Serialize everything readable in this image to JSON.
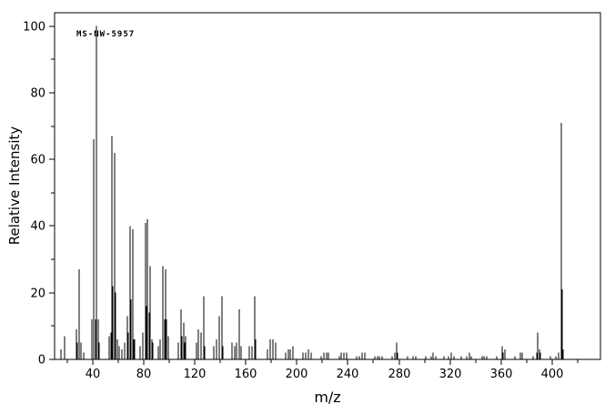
{
  "figure": {
    "background": "#ffffff",
    "line_color": "#000000"
  },
  "chart_data": {
    "type": "bar",
    "subtype": "mass-spectrum-sticks",
    "title": "",
    "annotation": "MS-NW-5957",
    "xlabel": "m/z",
    "ylabel": "Relative Intensity",
    "xlim": [
      10,
      438
    ],
    "ylim": [
      0,
      104
    ],
    "grid": false,
    "legend": false,
    "x_major_ticks": [
      40,
      80,
      120,
      160,
      200,
      240,
      280,
      320,
      360,
      400
    ],
    "x_minor_ticks": [
      20,
      60,
      100,
      140,
      180,
      220,
      260,
      300,
      340,
      380,
      420
    ],
    "y_major_ticks": [
      0,
      20,
      40,
      60,
      80,
      100
    ],
    "y_minor_ticks": [
      10,
      30,
      50,
      70,
      90
    ],
    "peaks": [
      [
        15,
        3
      ],
      [
        18,
        7
      ],
      [
        27,
        9
      ],
      [
        28,
        5
      ],
      [
        29,
        27
      ],
      [
        31,
        5
      ],
      [
        33,
        2
      ],
      [
        39,
        12
      ],
      [
        41,
        66
      ],
      [
        42,
        12
      ],
      [
        43,
        100
      ],
      [
        44,
        12
      ],
      [
        45,
        5
      ],
      [
        53,
        7
      ],
      [
        54,
        8
      ],
      [
        55,
        67
      ],
      [
        56,
        22
      ],
      [
        57,
        62
      ],
      [
        58,
        20
      ],
      [
        59,
        6
      ],
      [
        61,
        4
      ],
      [
        63,
        3
      ],
      [
        65,
        5
      ],
      [
        67,
        13
      ],
      [
        68,
        8
      ],
      [
        69,
        40
      ],
      [
        70,
        18
      ],
      [
        71,
        39
      ],
      [
        72,
        6
      ],
      [
        73,
        6
      ],
      [
        77,
        4
      ],
      [
        79,
        8
      ],
      [
        81,
        41
      ],
      [
        82,
        16
      ],
      [
        83,
        42
      ],
      [
        84,
        14
      ],
      [
        85,
        28
      ],
      [
        86,
        6
      ],
      [
        87,
        5
      ],
      [
        91,
        4
      ],
      [
        93,
        6
      ],
      [
        95,
        28
      ],
      [
        96,
        12
      ],
      [
        97,
        27
      ],
      [
        98,
        12
      ],
      [
        99,
        7
      ],
      [
        107,
        5
      ],
      [
        109,
        15
      ],
      [
        110,
        7
      ],
      [
        111,
        11
      ],
      [
        112,
        5
      ],
      [
        113,
        7
      ],
      [
        121,
        5
      ],
      [
        123,
        9
      ],
      [
        125,
        8
      ],
      [
        127,
        19
      ],
      [
        128,
        4
      ],
      [
        135,
        4
      ],
      [
        137,
        6
      ],
      [
        139,
        13
      ],
      [
        141,
        19
      ],
      [
        142,
        4
      ],
      [
        149,
        5
      ],
      [
        151,
        4
      ],
      [
        153,
        5
      ],
      [
        155,
        15
      ],
      [
        156,
        4
      ],
      [
        163,
        4
      ],
      [
        165,
        4
      ],
      [
        167,
        19
      ],
      [
        168,
        6
      ],
      [
        177,
        3
      ],
      [
        179,
        6
      ],
      [
        181,
        6
      ],
      [
        183,
        5
      ],
      [
        191,
        2
      ],
      [
        193,
        3
      ],
      [
        195,
        3
      ],
      [
        197,
        4
      ],
      [
        205,
        2
      ],
      [
        207,
        2
      ],
      [
        209,
        3
      ],
      [
        211,
        2
      ],
      [
        219,
        1
      ],
      [
        221,
        2
      ],
      [
        223,
        2
      ],
      [
        225,
        2
      ],
      [
        233,
        1
      ],
      [
        235,
        2
      ],
      [
        237,
        2
      ],
      [
        239,
        2
      ],
      [
        247,
        1
      ],
      [
        249,
        1
      ],
      [
        251,
        2
      ],
      [
        253,
        2
      ],
      [
        261,
        1
      ],
      [
        263,
        1
      ],
      [
        265,
        1
      ],
      [
        267,
        1
      ],
      [
        275,
        1
      ],
      [
        277,
        2
      ],
      [
        278,
        5
      ],
      [
        279,
        2
      ],
      [
        287,
        1
      ],
      [
        291,
        1
      ],
      [
        293,
        1
      ],
      [
        301,
        1
      ],
      [
        305,
        1
      ],
      [
        307,
        2
      ],
      [
        309,
        1
      ],
      [
        315,
        1
      ],
      [
        319,
        1
      ],
      [
        321,
        2
      ],
      [
        323,
        1
      ],
      [
        329,
        1
      ],
      [
        333,
        1
      ],
      [
        335,
        2
      ],
      [
        337,
        1
      ],
      [
        345,
        1
      ],
      [
        347,
        1
      ],
      [
        349,
        1
      ],
      [
        357,
        1
      ],
      [
        361,
        4
      ],
      [
        362,
        2
      ],
      [
        363,
        3
      ],
      [
        371,
        1
      ],
      [
        375,
        2
      ],
      [
        377,
        2
      ],
      [
        385,
        1
      ],
      [
        388,
        2
      ],
      [
        389,
        8
      ],
      [
        390,
        3
      ],
      [
        391,
        2
      ],
      [
        399,
        1
      ],
      [
        403,
        1
      ],
      [
        405,
        2
      ],
      [
        407,
        71
      ],
      [
        408,
        21
      ],
      [
        409,
        3
      ]
    ]
  }
}
